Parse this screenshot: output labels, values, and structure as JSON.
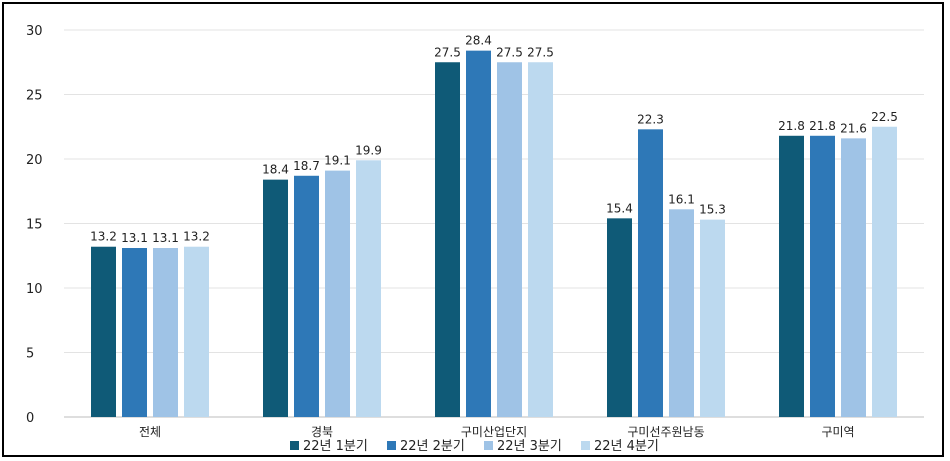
{
  "chart_data": {
    "type": "bar",
    "title": "",
    "xlabel": "",
    "ylabel": "",
    "ylim": [
      0,
      30
    ],
    "yticks": [
      0,
      5,
      10,
      15,
      20,
      25,
      30
    ],
    "grid": true,
    "legend_position": "bottom",
    "categories": [
      "전체",
      "경북",
      "구미산업단지",
      "구미선주원남동",
      "구미역"
    ],
    "series": [
      {
        "name": "22년 1분기",
        "color": "#0f5a77",
        "values": [
          13.2,
          18.4,
          27.5,
          15.4,
          21.8
        ]
      },
      {
        "name": "22년 2분기",
        "color": "#2e78b7",
        "values": [
          13.1,
          18.7,
          28.4,
          22.3,
          21.8
        ]
      },
      {
        "name": "22년 3분기",
        "color": "#9fc3e6",
        "values": [
          13.1,
          19.1,
          27.5,
          16.1,
          21.6
        ]
      },
      {
        "name": "22년 4분기",
        "color": "#bcd9ef",
        "values": [
          13.2,
          19.9,
          27.5,
          15.3,
          22.5
        ]
      }
    ]
  }
}
